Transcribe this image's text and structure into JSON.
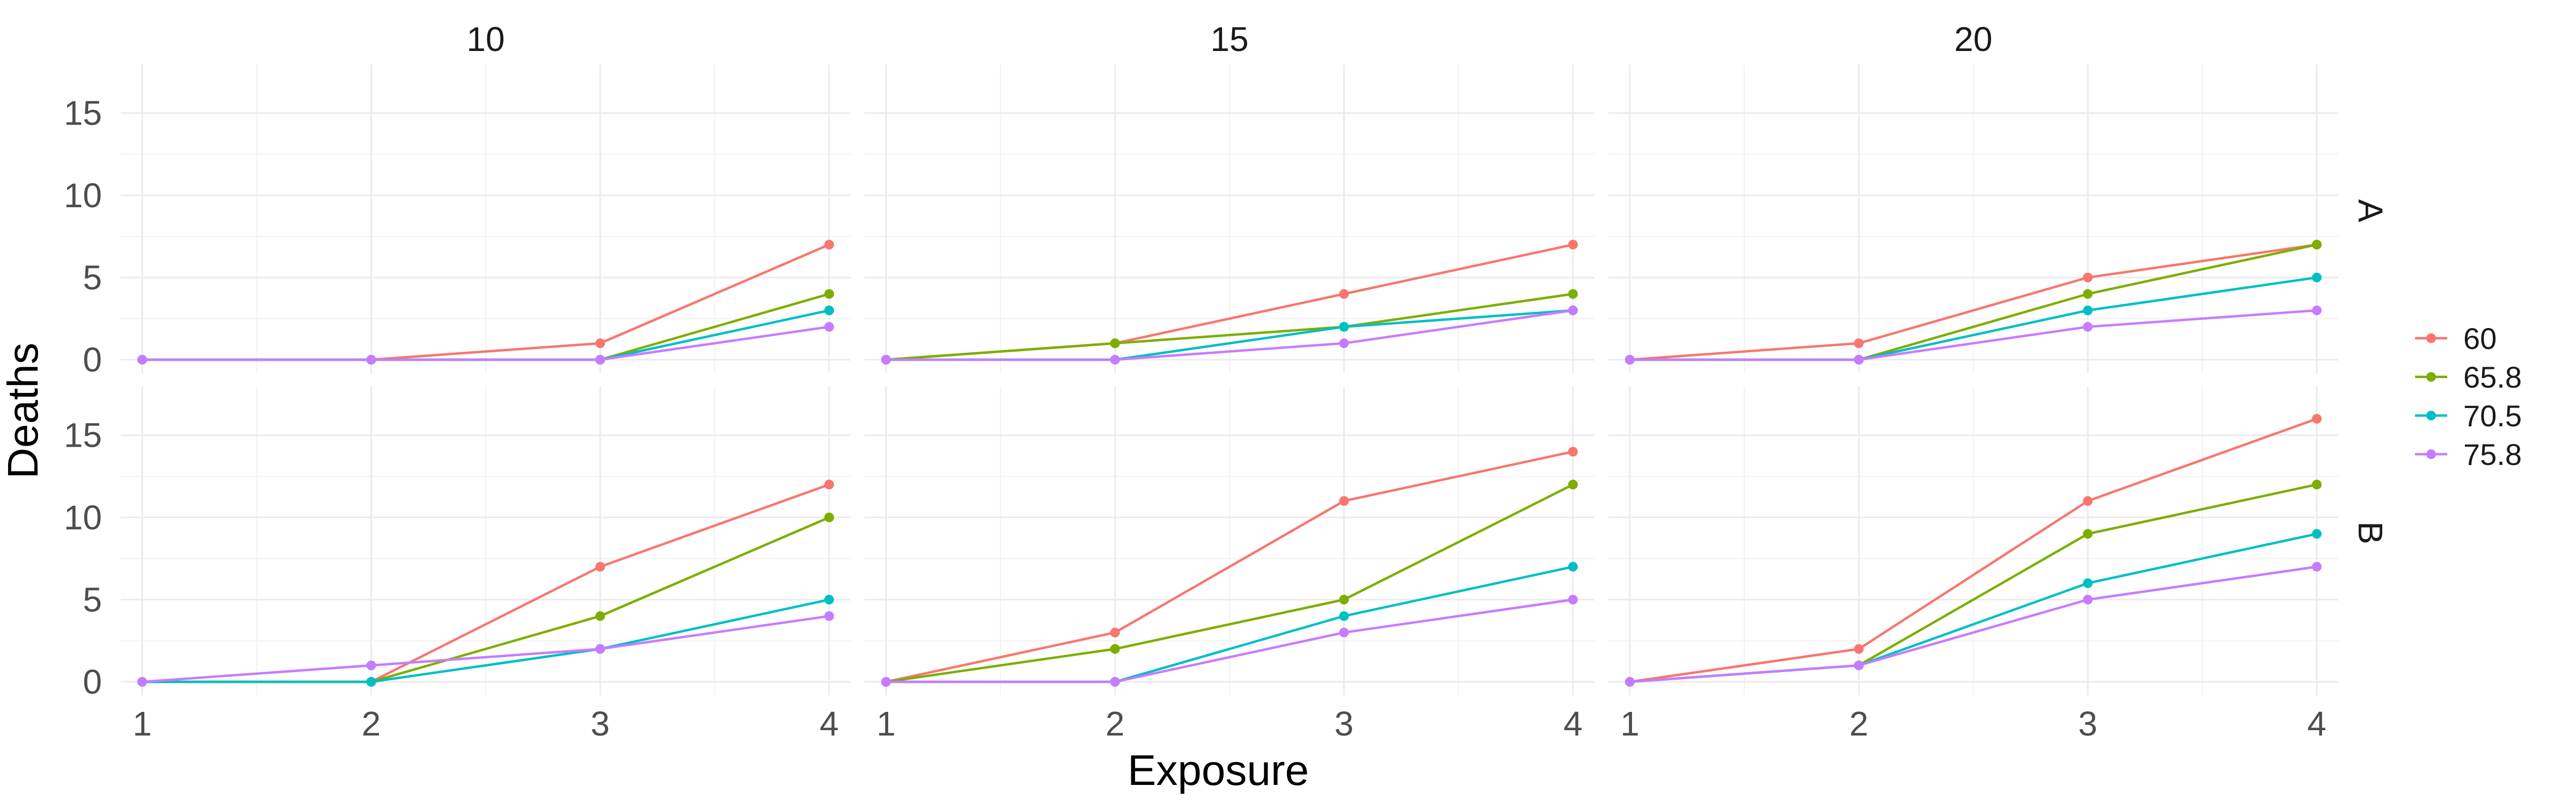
{
  "chart_data": {
    "type": "line",
    "xlabel": "Exposure",
    "ylabel": "Deaths",
    "x": [
      1,
      2,
      3,
      4
    ],
    "x_ticks": [
      "1",
      "2",
      "3",
      "4"
    ],
    "y_ticks": [
      "0",
      "5",
      "10",
      "15"
    ],
    "xlim": [
      1,
      4
    ],
    "ylim": [
      0,
      16
    ],
    "grid": true,
    "legend_position": "right",
    "col_facets": [
      "10",
      "15",
      "20"
    ],
    "row_facets": [
      "A",
      "B"
    ],
    "series_colors": {
      "60": "#F8766D",
      "65.8": "#7CAE00",
      "70.5": "#00BFC4",
      "75.8": "#C77CFF"
    },
    "legend": [
      "60",
      "65.8",
      "70.5",
      "75.8"
    ],
    "panels": [
      {
        "col": "10",
        "row": "A",
        "series": [
          {
            "name": "60",
            "values": [
              0,
              0,
              1,
              7
            ]
          },
          {
            "name": "65.8",
            "values": [
              0,
              0,
              0,
              4
            ]
          },
          {
            "name": "70.5",
            "values": [
              0,
              0,
              0,
              3
            ]
          },
          {
            "name": "75.8",
            "values": [
              0,
              0,
              0,
              2
            ]
          }
        ]
      },
      {
        "col": "15",
        "row": "A",
        "series": [
          {
            "name": "60",
            "values": [
              0,
              1,
              4,
              7
            ]
          },
          {
            "name": "65.8",
            "values": [
              0,
              1,
              2,
              4
            ]
          },
          {
            "name": "70.5",
            "values": [
              0,
              0,
              2,
              3
            ]
          },
          {
            "name": "75.8",
            "values": [
              0,
              0,
              1,
              3
            ]
          }
        ]
      },
      {
        "col": "20",
        "row": "A",
        "series": [
          {
            "name": "60",
            "values": [
              0,
              1,
              5,
              7
            ]
          },
          {
            "name": "65.8",
            "values": [
              0,
              0,
              4,
              7
            ]
          },
          {
            "name": "70.5",
            "values": [
              0,
              0,
              3,
              5
            ]
          },
          {
            "name": "75.8",
            "values": [
              0,
              0,
              2,
              3
            ]
          }
        ]
      },
      {
        "col": "10",
        "row": "B",
        "series": [
          {
            "name": "60",
            "values": [
              0,
              0,
              7,
              12
            ]
          },
          {
            "name": "65.8",
            "values": [
              0,
              0,
              4,
              10
            ]
          },
          {
            "name": "70.5",
            "values": [
              0,
              0,
              2,
              5
            ]
          },
          {
            "name": "75.8",
            "values": [
              0,
              1,
              2,
              4
            ]
          }
        ]
      },
      {
        "col": "15",
        "row": "B",
        "series": [
          {
            "name": "60",
            "values": [
              0,
              3,
              11,
              14
            ]
          },
          {
            "name": "65.8",
            "values": [
              0,
              2,
              5,
              12
            ]
          },
          {
            "name": "70.5",
            "values": [
              0,
              0,
              4,
              7
            ]
          },
          {
            "name": "75.8",
            "values": [
              0,
              0,
              3,
              5
            ]
          }
        ]
      },
      {
        "col": "20",
        "row": "B",
        "series": [
          {
            "name": "60",
            "values": [
              0,
              2,
              11,
              16
            ]
          },
          {
            "name": "65.8",
            "values": [
              0,
              1,
              9,
              12
            ]
          },
          {
            "name": "70.5",
            "values": [
              0,
              1,
              6,
              9
            ]
          },
          {
            "name": "75.8",
            "values": [
              0,
              1,
              5,
              7
            ]
          }
        ]
      }
    ]
  }
}
